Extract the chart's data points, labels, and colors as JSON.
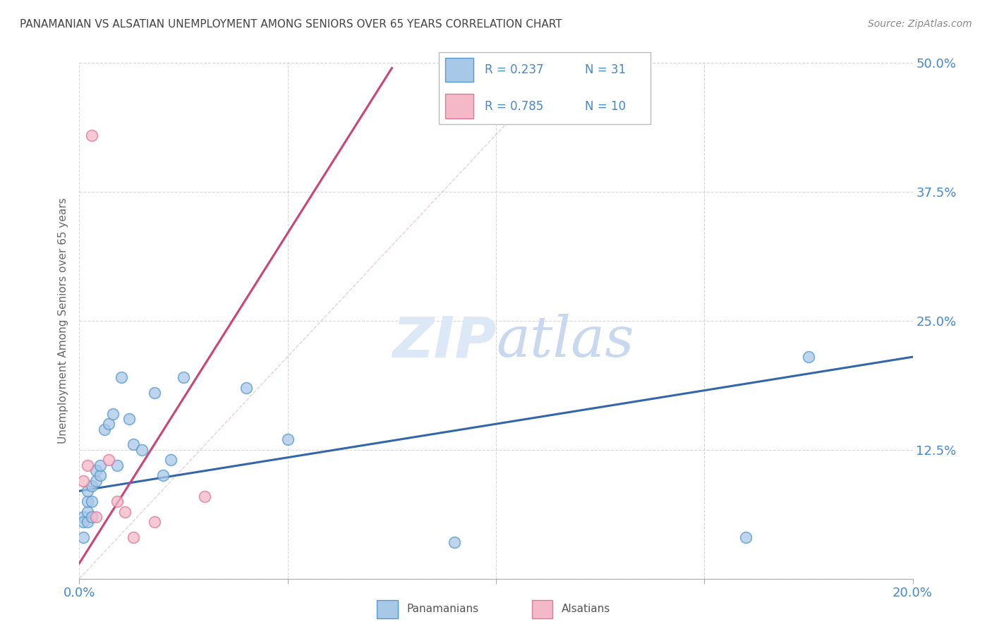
{
  "title": "PANAMANIAN VS ALSATIAN UNEMPLOYMENT AMONG SENIORS OVER 65 YEARS CORRELATION CHART",
  "source": "Source: ZipAtlas.com",
  "ylabel": "Unemployment Among Seniors over 65 years",
  "xlim": [
    0.0,
    0.2
  ],
  "ylim": [
    0.0,
    0.5
  ],
  "xticks": [
    0.0,
    0.05,
    0.1,
    0.15,
    0.2
  ],
  "yticks": [
    0.0,
    0.125,
    0.25,
    0.375,
    0.5
  ],
  "xticklabels": [
    "0.0%",
    "",
    "",
    "",
    "20.0%"
  ],
  "yticklabels_right": [
    "",
    "12.5%",
    "25.0%",
    "37.5%",
    "50.0%"
  ],
  "blue_color": "#a8c8e8",
  "pink_color": "#f4b8c8",
  "blue_edge_color": "#5599cc",
  "pink_edge_color": "#dd7799",
  "blue_line_color": "#3366aa",
  "pink_line_color": "#cc4477",
  "title_color": "#444444",
  "source_color": "#888888",
  "axis_label_color": "#666666",
  "tick_color": "#4488cc",
  "grid_color": "#cccccc",
  "watermark_color": "#dce8f5",
  "blue_points_x": [
    0.001,
    0.001,
    0.001,
    0.002,
    0.002,
    0.002,
    0.002,
    0.003,
    0.003,
    0.003,
    0.004,
    0.004,
    0.005,
    0.005,
    0.006,
    0.007,
    0.008,
    0.009,
    0.01,
    0.012,
    0.013,
    0.015,
    0.018,
    0.02,
    0.022,
    0.025,
    0.04,
    0.05,
    0.09,
    0.16,
    0.175
  ],
  "blue_points_y": [
    0.06,
    0.04,
    0.055,
    0.055,
    0.065,
    0.075,
    0.085,
    0.06,
    0.075,
    0.09,
    0.095,
    0.105,
    0.1,
    0.11,
    0.145,
    0.15,
    0.16,
    0.11,
    0.195,
    0.155,
    0.13,
    0.125,
    0.18,
    0.1,
    0.115,
    0.195,
    0.185,
    0.135,
    0.035,
    0.04,
    0.215
  ],
  "pink_points_x": [
    0.001,
    0.002,
    0.003,
    0.004,
    0.007,
    0.009,
    0.011,
    0.013,
    0.018,
    0.03
  ],
  "pink_points_y": [
    0.095,
    0.11,
    0.43,
    0.06,
    0.115,
    0.075,
    0.065,
    0.04,
    0.055,
    0.08
  ],
  "blue_trend_x": [
    0.0,
    0.2
  ],
  "blue_trend_y": [
    0.085,
    0.215
  ],
  "pink_trend_x": [
    0.0,
    0.075
  ],
  "pink_trend_y": [
    0.015,
    0.495
  ],
  "ref_line_x": [
    0.0,
    0.115
  ],
  "ref_line_y": [
    0.0,
    0.495
  ]
}
